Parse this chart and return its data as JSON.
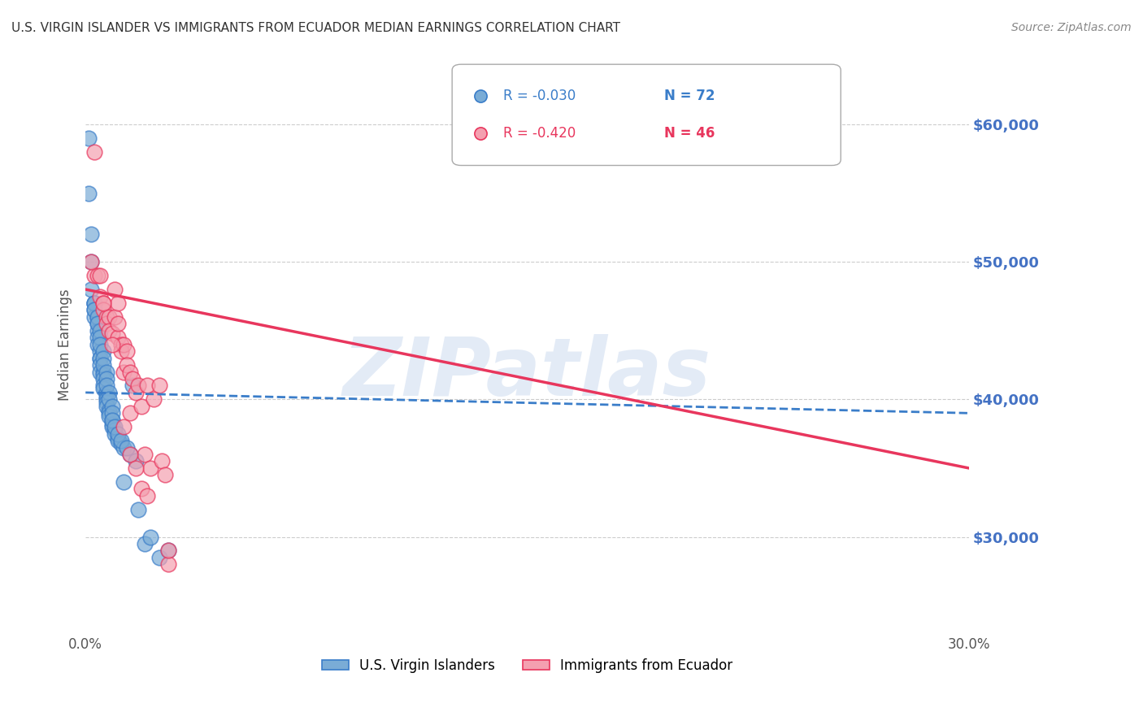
{
  "title": "U.S. VIRGIN ISLANDER VS IMMIGRANTS FROM ECUADOR MEDIAN EARNINGS CORRELATION CHART",
  "source": "Source: ZipAtlas.com",
  "ylabel": "Median Earnings",
  "y_tick_labels": [
    "$30,000",
    "$40,000",
    "$50,000",
    "$60,000"
  ],
  "y_tick_values": [
    30000,
    40000,
    50000,
    60000
  ],
  "xlim": [
    0.0,
    0.3
  ],
  "ylim": [
    23000,
    65000
  ],
  "watermark": "ZIPatlas",
  "blue_R": "-0.030",
  "blue_N": "72",
  "pink_R": "-0.420",
  "pink_N": "46",
  "blue_color": "#7aacd6",
  "pink_color": "#f4a0b0",
  "blue_line_color": "#3a7dc9",
  "pink_line_color": "#e8365d",
  "blue_scatter_x": [
    0.001,
    0.001,
    0.002,
    0.002,
    0.002,
    0.003,
    0.003,
    0.003,
    0.003,
    0.004,
    0.004,
    0.004,
    0.004,
    0.004,
    0.005,
    0.005,
    0.005,
    0.005,
    0.005,
    0.006,
    0.006,
    0.006,
    0.006,
    0.006,
    0.007,
    0.007,
    0.007,
    0.007,
    0.007,
    0.008,
    0.008,
    0.008,
    0.009,
    0.009,
    0.009,
    0.01,
    0.01,
    0.011,
    0.011,
    0.012,
    0.013,
    0.013,
    0.015,
    0.016,
    0.017,
    0.018,
    0.02,
    0.022,
    0.025,
    0.028,
    0.003,
    0.003,
    0.004,
    0.004,
    0.005,
    0.005,
    0.005,
    0.006,
    0.006,
    0.006,
    0.007,
    0.007,
    0.007,
    0.008,
    0.008,
    0.009,
    0.009,
    0.009,
    0.01,
    0.011,
    0.012,
    0.014
  ],
  "blue_scatter_y": [
    59000,
    55000,
    52000,
    50000,
    48000,
    47000,
    47000,
    46500,
    46000,
    46000,
    45500,
    45000,
    44500,
    44000,
    43500,
    43000,
    43000,
    42500,
    42000,
    42000,
    41800,
    41500,
    41000,
    40800,
    40500,
    40200,
    40000,
    39800,
    39500,
    39200,
    39000,
    38800,
    38500,
    38200,
    38000,
    37800,
    37500,
    37200,
    37000,
    36800,
    36500,
    34000,
    36000,
    41000,
    35500,
    32000,
    29500,
    30000,
    28500,
    29000,
    47000,
    46500,
    46000,
    45500,
    45000,
    44500,
    44000,
    43500,
    43000,
    42500,
    42000,
    41500,
    41000,
    40500,
    40000,
    39500,
    39000,
    38500,
    38000,
    37500,
    37000,
    36500
  ],
  "pink_scatter_x": [
    0.003,
    0.003,
    0.004,
    0.005,
    0.005,
    0.006,
    0.006,
    0.007,
    0.007,
    0.008,
    0.008,
    0.009,
    0.01,
    0.01,
    0.011,
    0.011,
    0.012,
    0.012,
    0.013,
    0.013,
    0.014,
    0.014,
    0.015,
    0.015,
    0.016,
    0.017,
    0.018,
    0.019,
    0.02,
    0.021,
    0.022,
    0.023,
    0.025,
    0.026,
    0.027,
    0.028,
    0.002,
    0.006,
    0.009,
    0.011,
    0.013,
    0.015,
    0.017,
    0.019,
    0.021,
    0.028
  ],
  "pink_scatter_y": [
    58000,
    49000,
    49000,
    49000,
    47500,
    47000,
    46500,
    46000,
    45500,
    46000,
    45000,
    44800,
    48000,
    46000,
    47000,
    44500,
    44000,
    43500,
    44000,
    42000,
    43500,
    42500,
    42000,
    39000,
    41500,
    40500,
    41000,
    39500,
    36000,
    41000,
    35000,
    40000,
    41000,
    35500,
    34500,
    28000,
    50000,
    47000,
    44000,
    45500,
    38000,
    36000,
    35000,
    33500,
    33000,
    29000
  ],
  "blue_trend_x": [
    0.0,
    0.3
  ],
  "blue_trend_y": [
    40500,
    39000
  ],
  "pink_trend_x": [
    0.0,
    0.3
  ],
  "pink_trend_y": [
    48000,
    35000
  ],
  "legend_label_blue": "U.S. Virgin Islanders",
  "legend_label_pink": "Immigrants from Ecuador",
  "background_color": "#ffffff",
  "grid_color": "#cccccc",
  "title_color": "#333333",
  "right_axis_label_color": "#4472c4",
  "watermark_color": "#c8d8ee"
}
